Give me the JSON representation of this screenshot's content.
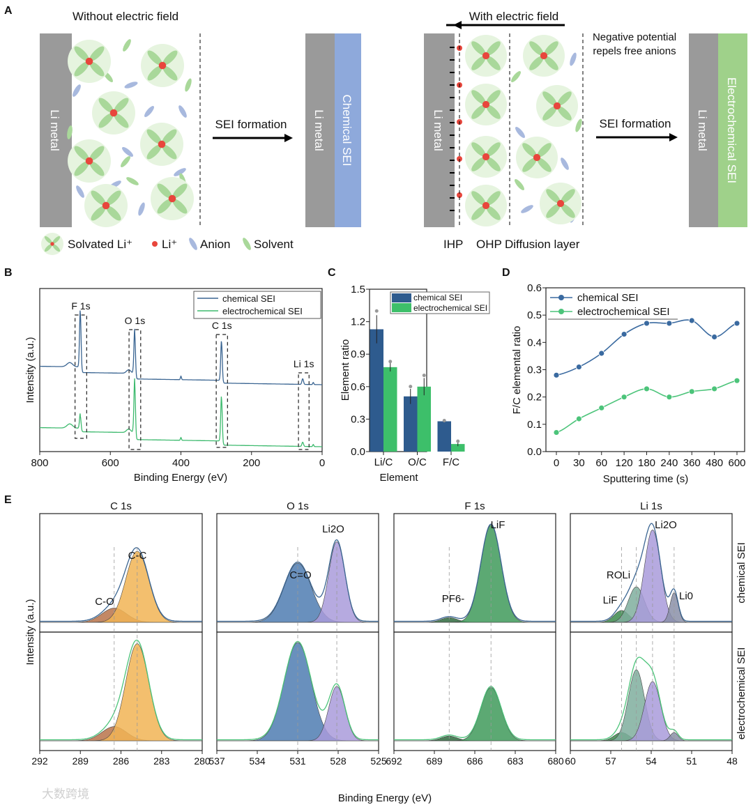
{
  "panel_labels": [
    "A",
    "B",
    "C",
    "D",
    "E"
  ],
  "panel_a": {
    "left_title": "Without electric field",
    "right_title": "With electric field",
    "li_metal": "Li metal",
    "chemical_sei": "Chemical SEI",
    "electrochemical_sei": "Electrochemical SEI",
    "sei_formation": "SEI formation",
    "note_line1": "Negative potential",
    "note_line2": "repels free anions",
    "legend": [
      "Solvated Li⁺",
      "Li⁺",
      "Anion",
      "Solvent"
    ],
    "layers": [
      "IHP",
      "OHP",
      "Diffusion layer"
    ],
    "colors": {
      "metal": "#9a9a9a",
      "chemical_sei": "#8ea9db",
      "electrochemical_sei": "#9fd18a",
      "li": "#e8463c",
      "solvent": "#a9d89a",
      "anion": "#a8b9de"
    }
  },
  "watermark": "大数跨境",
  "chart_data": [
    {
      "id": "B",
      "type": "line",
      "xlabel": "Binding Energy (eV)",
      "ylabel": "Intensity (a.u.)",
      "xlim": [
        800,
        0
      ],
      "xticks": [
        800,
        600,
        400,
        200,
        0
      ],
      "legend": [
        "chemical SEI",
        "electrochemical SEI"
      ],
      "legend_position": "top-right",
      "series_colors": [
        "#3a6592",
        "#3dba6e"
      ],
      "peak_labels": [
        "F 1s",
        "O 1s",
        "C 1s",
        "Li 1s"
      ],
      "peaks_eV": [
        685,
        531,
        285,
        55
      ]
    },
    {
      "id": "C",
      "type": "bar",
      "xlabel": "Element",
      "ylabel": "Element ratio",
      "categories": [
        "Li/C",
        "O/C",
        "F/C"
      ],
      "ylim": [
        0,
        1.5
      ],
      "yticks": [
        "0.0",
        "0.3",
        "0.6",
        "0.9",
        "1.2",
        "1.5"
      ],
      "legend_position": "top-right",
      "series": [
        {
          "name": "chemical SEI",
          "color": "#2e5b8e",
          "values": [
            1.13,
            0.51,
            0.28
          ],
          "errors": [
            0.13,
            0.07,
            0.005
          ]
        },
        {
          "name": "electrochemical SEI",
          "color": "#3dbf6a",
          "values": [
            0.78,
            0.6,
            0.07
          ],
          "errors": [
            0.04,
            0.08,
            0.02
          ]
        }
      ]
    },
    {
      "id": "D",
      "type": "line",
      "xlabel": "Sputtering time (s)",
      "ylabel": "F/C elemental ratio",
      "x": [
        "0",
        "30",
        "60",
        "120",
        "180",
        "240",
        "360",
        "480",
        "600"
      ],
      "ylim": [
        0,
        0.6
      ],
      "yticks": [
        "0.0",
        "0.1",
        "0.2",
        "0.3",
        "0.4",
        "0.5",
        "0.6"
      ],
      "legend_position": "top-left",
      "series": [
        {
          "name": "chemical SEI",
          "color": "#3a6aa0",
          "values": [
            0.28,
            0.31,
            0.36,
            0.43,
            0.47,
            0.47,
            0.48,
            0.42,
            0.47
          ]
        },
        {
          "name": "electrochemical SEI",
          "color": "#4cc47a",
          "values": [
            0.07,
            0.12,
            0.16,
            0.2,
            0.23,
            0.2,
            0.22,
            0.23,
            0.26
          ]
        }
      ]
    },
    {
      "id": "E",
      "type": "area",
      "xlabel": "Binding Energy (eV)",
      "ylabel": "Intensity (a.u.)",
      "row_labels": [
        "chemical SEI",
        "electrochemical SEI"
      ],
      "subplots": [
        {
          "title": "C 1s",
          "xlim": [
            292,
            280
          ],
          "xticks": [
            "292",
            "289",
            "286",
            "283",
            "280"
          ],
          "components": [
            {
              "label": "C-O",
              "center": 286.5,
              "sigma": 0.9,
              "amp": [
                0.12,
                0.12
              ],
              "color": "#b8734a"
            },
            {
              "label": "C-C",
              "center": 284.8,
              "sigma": 0.85,
              "amp": [
                0.6,
                0.82
              ],
              "color": "#f1b455"
            }
          ]
        },
        {
          "title": "O 1s",
          "xlim": [
            537,
            525
          ],
          "xticks": [
            "537",
            "534",
            "531",
            "528",
            "525"
          ],
          "components": [
            {
              "label": "C=O",
              "center": 531.0,
              "sigma": 1.0,
              "amp": [
                0.5,
                0.83
              ],
              "color": "#4f7db2"
            },
            {
              "label": "Li2O",
              "center": 528.1,
              "sigma": 0.6,
              "amp": [
                0.68,
                0.46
              ],
              "color": "#a99bdb"
            }
          ]
        },
        {
          "title": "F 1s",
          "xlim": [
            692,
            680
          ],
          "xticks": [
            "692",
            "689",
            "686",
            "683",
            "680"
          ],
          "components": [
            {
              "label": "PF6-",
              "center": 687.9,
              "sigma": 0.6,
              "amp": [
                0.04,
                0.04
              ],
              "color": "#2f6a3e"
            },
            {
              "label": "LiF",
              "center": 684.8,
              "sigma": 0.75,
              "amp": [
                0.82,
                0.45
              ],
              "color": "#3f9a5b"
            }
          ]
        },
        {
          "title": "Li 1s",
          "xlim": [
            60,
            48
          ],
          "xticks": [
            "60",
            "57",
            "54",
            "51",
            "48"
          ],
          "components": [
            {
              "label": "LiF",
              "center": 56.2,
              "sigma": 0.55,
              "amp": [
                0.1,
                0.07
              ],
              "color": "#3b8a4c"
            },
            {
              "label": "ROLi",
              "center": 55.1,
              "sigma": 0.6,
              "amp": [
                0.3,
                0.6
              ],
              "color": "#7fae9e"
            },
            {
              "label": "Li2O",
              "center": 53.9,
              "sigma": 0.6,
              "amp": [
                0.78,
                0.5
              ],
              "color": "#a99bdb"
            },
            {
              "label": "Li0",
              "center": 52.3,
              "sigma": 0.3,
              "amp": [
                0.25,
                0.07
              ],
              "color": "#8a8fa8"
            }
          ]
        }
      ]
    }
  ]
}
